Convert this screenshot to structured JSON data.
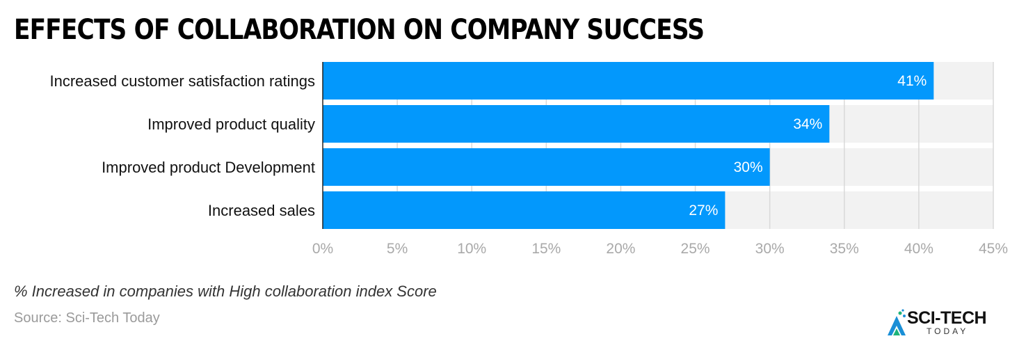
{
  "chart_data": {
    "type": "bar",
    "orientation": "horizontal",
    "title": "EFFECTS OF COLLABORATION ON COMPANY SUCCESS",
    "categories": [
      "Increased customer satisfaction ratings",
      "Improved product quality",
      "Improved product Development",
      "Increased sales"
    ],
    "values": [
      41,
      34,
      30,
      27
    ],
    "value_labels": [
      "41%",
      "34%",
      "30%",
      "27%"
    ],
    "xlim": [
      0,
      45
    ],
    "x_ticks": [
      0,
      5,
      10,
      15,
      20,
      25,
      30,
      35,
      40,
      45
    ],
    "x_tick_labels": [
      "0%",
      "5%",
      "10%",
      "15%",
      "20%",
      "25%",
      "30%",
      "35%",
      "40%",
      "45%"
    ],
    "grid": true,
    "bar_color": "#0398fc",
    "track_color": "#f2f2f2",
    "subtitle": "% Increased in companies with High collaboration index Score",
    "source": "Source: Sci-Tech Today"
  },
  "logo": {
    "text": "SCI-TECH",
    "sub": "TODAY"
  }
}
